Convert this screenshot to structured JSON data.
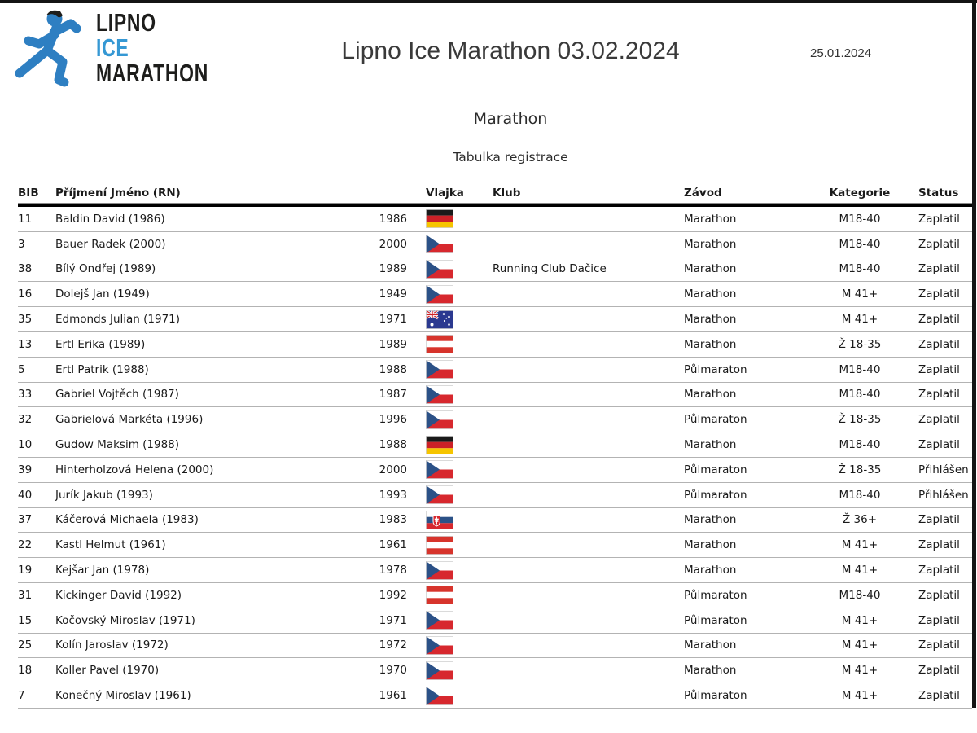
{
  "logo": {
    "line1": "LIPNO",
    "line2": "ICE",
    "line3": "MARATHON"
  },
  "header": {
    "title": "Lipno Ice Marathon 03.02.2024",
    "date": "25.01.2024"
  },
  "section": {
    "race": "Marathon",
    "caption": "Tabulka registrace"
  },
  "brand": {
    "runner_blue": "#2e7fc2",
    "ice_blue": "#3598d4",
    "dark": "#1d1d1b"
  },
  "flags": {
    "cz": {
      "name": "czech-republic",
      "colors": [
        "#ffffff",
        "#d7282e",
        "#2b5187"
      ]
    },
    "de": {
      "name": "germany",
      "colors": [
        "#1a1a1a",
        "#cc2127",
        "#f6c500"
      ]
    },
    "at": {
      "name": "austria",
      "colors": [
        "#d7342c",
        "#ffffff"
      ]
    },
    "au": {
      "name": "australia",
      "colors": [
        "#2b3990",
        "#ffffff",
        "#cc2127"
      ]
    },
    "sk": {
      "name": "slovakia",
      "colors": [
        "#ffffff",
        "#2b5187",
        "#d7282e"
      ]
    }
  },
  "table": {
    "columns": [
      "BIB",
      "Příjmení Jméno (RN)",
      "Vlajka",
      "Klub",
      "Závod",
      "Kategorie",
      "Status"
    ],
    "rows": [
      {
        "bib": "11",
        "name": "Baldin David (1986)",
        "year": "1986",
        "flag": "de",
        "klub": "",
        "zavod": "Marathon",
        "kategorie": "M18-40",
        "status": "Zaplatil"
      },
      {
        "bib": "3",
        "name": "Bauer Radek (2000)",
        "year": "2000",
        "flag": "cz",
        "klub": "",
        "zavod": "Marathon",
        "kategorie": "M18-40",
        "status": "Zaplatil"
      },
      {
        "bib": "38",
        "name": "Bílý Ondřej (1989)",
        "year": "1989",
        "flag": "cz",
        "klub": "Running Club Dačice",
        "zavod": "Marathon",
        "kategorie": "M18-40",
        "status": "Zaplatil"
      },
      {
        "bib": "16",
        "name": "Dolejš Jan (1949)",
        "year": "1949",
        "flag": "cz",
        "klub": "",
        "zavod": "Marathon",
        "kategorie": "M 41+",
        "status": "Zaplatil"
      },
      {
        "bib": "35",
        "name": "Edmonds Julian (1971)",
        "year": "1971",
        "flag": "au",
        "klub": "",
        "zavod": "Marathon",
        "kategorie": "M 41+",
        "status": "Zaplatil"
      },
      {
        "bib": "13",
        "name": "Ertl Erika (1989)",
        "year": "1989",
        "flag": "at",
        "klub": "",
        "zavod": "Marathon",
        "kategorie": "Ž 18-35",
        "status": "Zaplatil"
      },
      {
        "bib": "5",
        "name": "Ertl Patrik (1988)",
        "year": "1988",
        "flag": "cz",
        "klub": "",
        "zavod": "Půlmaraton",
        "kategorie": "M18-40",
        "status": "Zaplatil"
      },
      {
        "bib": "33",
        "name": "Gabriel Vojtěch (1987)",
        "year": "1987",
        "flag": "cz",
        "klub": "",
        "zavod": "Marathon",
        "kategorie": "M18-40",
        "status": "Zaplatil"
      },
      {
        "bib": "32",
        "name": "Gabrielová Markéta (1996)",
        "year": "1996",
        "flag": "cz",
        "klub": "",
        "zavod": "Půlmaraton",
        "kategorie": "Ž 18-35",
        "status": "Zaplatil"
      },
      {
        "bib": "10",
        "name": "Gudow Maksim (1988)",
        "year": "1988",
        "flag": "de",
        "klub": "",
        "zavod": "Marathon",
        "kategorie": "M18-40",
        "status": "Zaplatil"
      },
      {
        "bib": "39",
        "name": "Hinterholzová Helena (2000)",
        "year": "2000",
        "flag": "cz",
        "klub": "",
        "zavod": "Půlmaraton",
        "kategorie": "Ž 18-35",
        "status": "Přihlášen"
      },
      {
        "bib": "40",
        "name": "Jurík Jakub (1993)",
        "year": "1993",
        "flag": "cz",
        "klub": "",
        "zavod": "Půlmaraton",
        "kategorie": "M18-40",
        "status": "Přihlášen"
      },
      {
        "bib": "37",
        "name": "Káčerová Michaela (1983)",
        "year": "1983",
        "flag": "sk",
        "klub": "",
        "zavod": "Marathon",
        "kategorie": "Ž 36+",
        "status": "Zaplatil"
      },
      {
        "bib": "22",
        "name": "Kastl Helmut (1961)",
        "year": "1961",
        "flag": "at",
        "klub": "",
        "zavod": "Marathon",
        "kategorie": "M 41+",
        "status": "Zaplatil"
      },
      {
        "bib": "19",
        "name": "Kejšar Jan (1978)",
        "year": "1978",
        "flag": "cz",
        "klub": "",
        "zavod": "Marathon",
        "kategorie": "M 41+",
        "status": "Zaplatil"
      },
      {
        "bib": "31",
        "name": "Kickinger David (1992)",
        "year": "1992",
        "flag": "at",
        "klub": "",
        "zavod": "Půlmaraton",
        "kategorie": "M18-40",
        "status": "Zaplatil"
      },
      {
        "bib": "15",
        "name": "Kočovský Miroslav (1971)",
        "year": "1971",
        "flag": "cz",
        "klub": "",
        "zavod": "Půlmaraton",
        "kategorie": "M 41+",
        "status": "Zaplatil"
      },
      {
        "bib": "25",
        "name": "Kolín Jaroslav (1972)",
        "year": "1972",
        "flag": "cz",
        "klub": "",
        "zavod": "Marathon",
        "kategorie": "M 41+",
        "status": "Zaplatil"
      },
      {
        "bib": "18",
        "name": "Koller Pavel (1970)",
        "year": "1970",
        "flag": "cz",
        "klub": "",
        "zavod": "Marathon",
        "kategorie": "M 41+",
        "status": "Zaplatil"
      },
      {
        "bib": "7",
        "name": "Konečný Miroslav (1961)",
        "year": "1961",
        "flag": "cz",
        "klub": "",
        "zavod": "Půlmaraton",
        "kategorie": "M 41+",
        "status": "Zaplatil"
      }
    ]
  }
}
